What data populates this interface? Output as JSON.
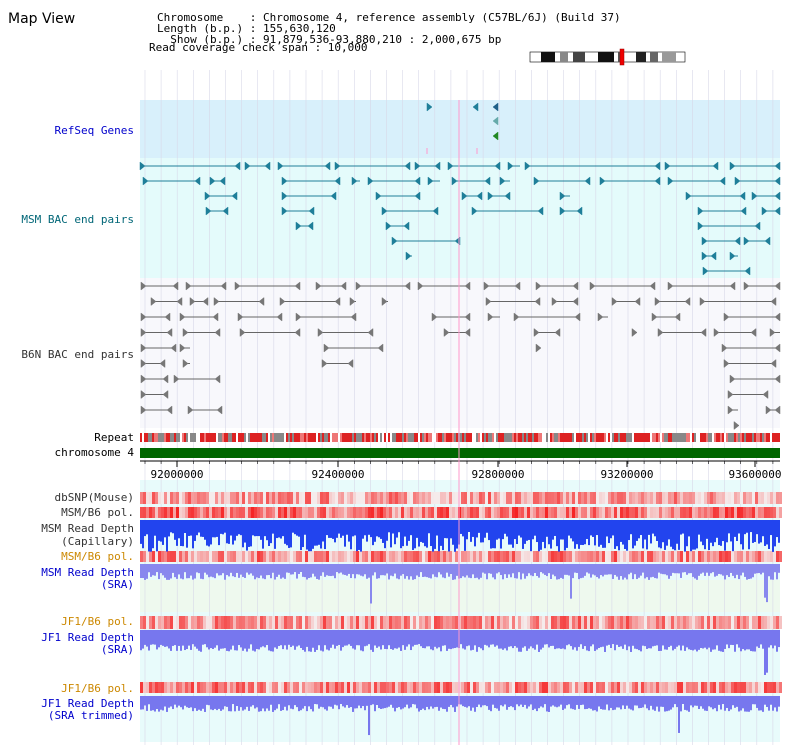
{
  "title": "Map View",
  "info": {
    "lines": [
      "Chromosome    : Chromosome 4, reference assembly (C57BL/6J) (Build 37)",
      "Length (b.p.) : 155,630,120",
      "  Show (b.p.) : 91,879,536-93,880,210 : 2,000,675 bp",
      "Read coverage check span : 10,000"
    ]
  },
  "tracks": {
    "refseq": "RefSeq Genes",
    "msm_bac": "MSM BAC end pairs",
    "b6n_bac": "B6N BAC end pairs",
    "repeat": "Repeat",
    "chromosome": "chromosome 4",
    "dbsnp": "dbSNP(Mouse)",
    "msm_b6_pol_1": "MSM/B6 pol.",
    "msm_depth_cap_1": "MSM Read Depth",
    "msm_depth_cap_2": "(Capillary)",
    "msm_b6_pol_2": "MSM/B6 pol.",
    "msm_depth_sra_1": "MSM Read Depth",
    "msm_depth_sra_2": "(SRA)",
    "jf1_b6_pol_1": "JF1/B6 pol.",
    "jf1_depth_sra_1": "JF1 Read Depth",
    "jf1_depth_sra_2": "(SRA)",
    "jf1_b6_pol_2": "JF1/B6 pol.",
    "jf1_depth_trim_1": "JF1 Read Depth",
    "jf1_depth_trim_2": "(SRA trimmed)"
  },
  "axis_ticks": [
    "92000000",
    "92400000",
    "92800000",
    "93200000",
    "93600000"
  ],
  "colors": {
    "label_blue": "#0000cc",
    "label_teal": "#006677",
    "label_gray": "#333333",
    "label_orange": "#cc8800",
    "refseq_bg": "#d8f0fb",
    "msm_bg": "#e4fbfb",
    "chrom_green": "#006600",
    "teal_feature": "#1f7f99",
    "gray_feature": "#666666"
  }
}
